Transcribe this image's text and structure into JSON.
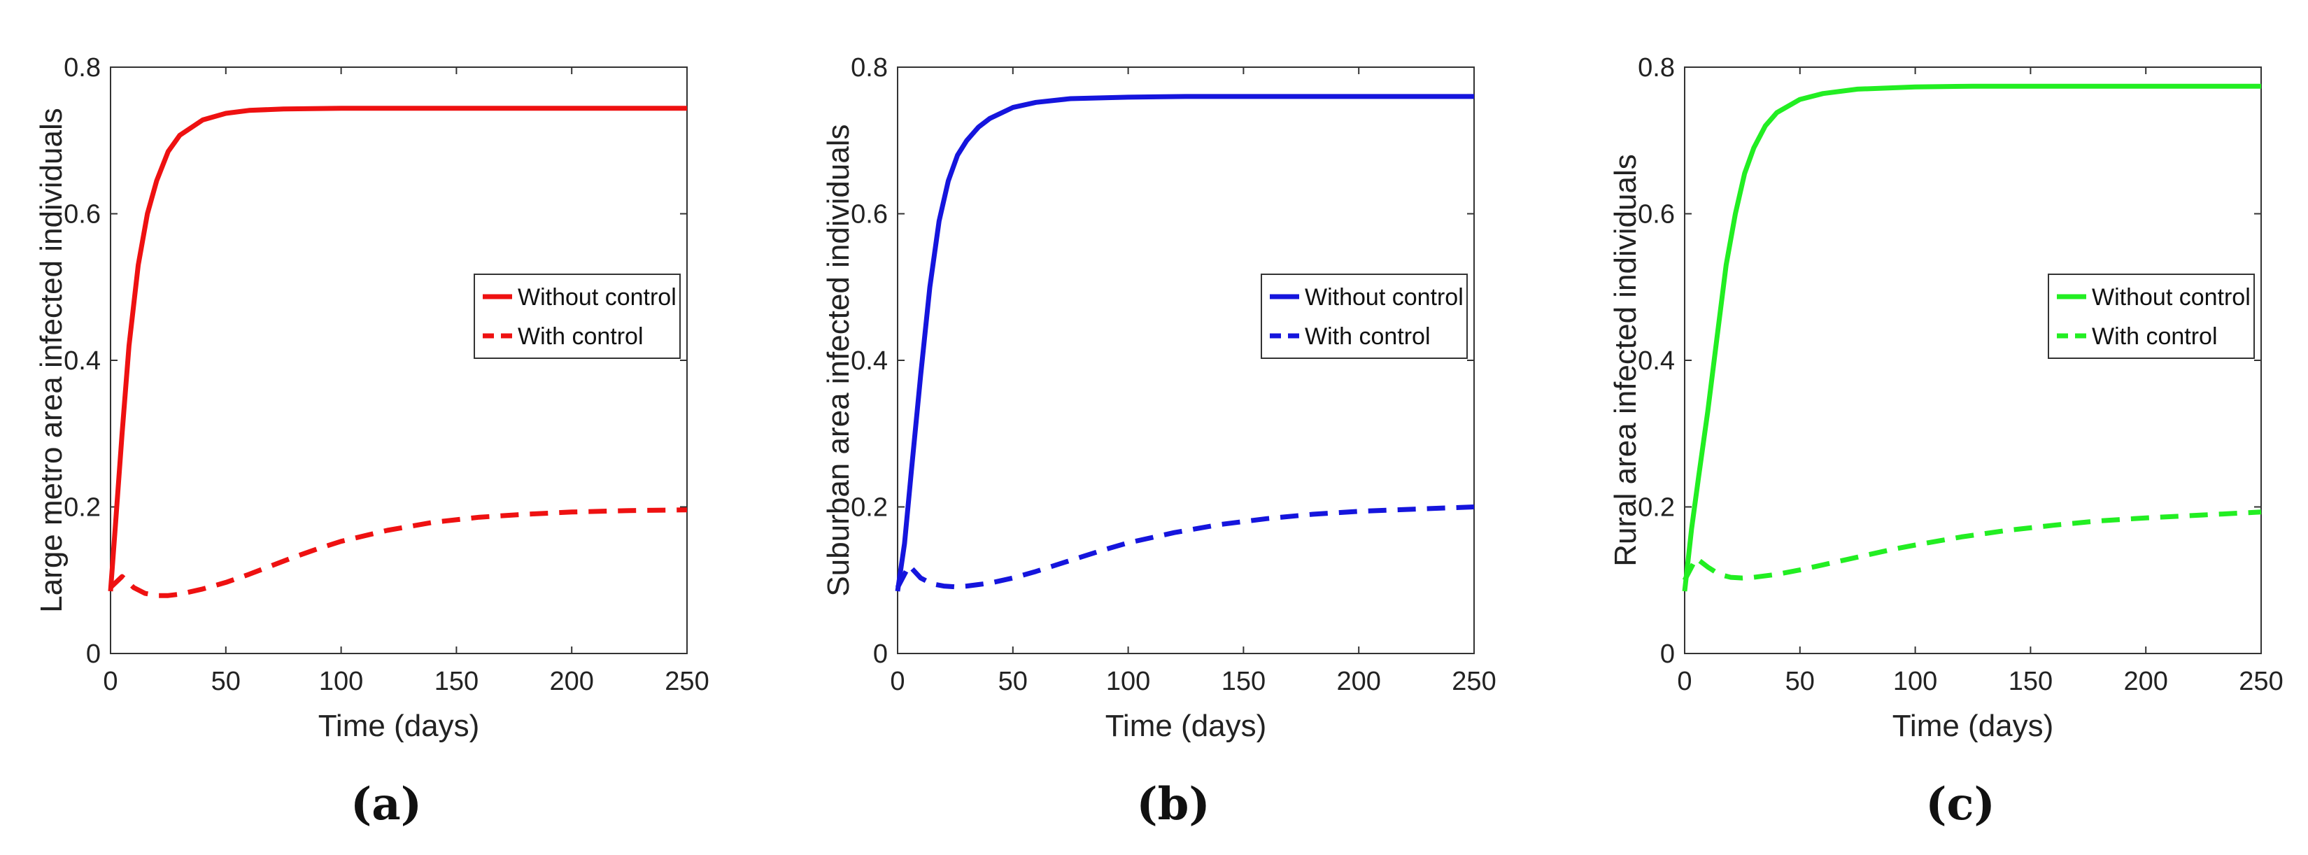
{
  "chart_data": [
    {
      "type": "line",
      "panel_label": "(a)",
      "title": "",
      "xlabel": "Time (days)",
      "ylabel": "Large metro area infected individuals",
      "xlim": [
        0,
        250
      ],
      "ylim": [
        0,
        0.8
      ],
      "xticks": [
        0,
        50,
        100,
        150,
        200,
        250
      ],
      "yticks": [
        0,
        0.2,
        0.4,
        0.6,
        0.8
      ],
      "xtick_labels": [
        "0",
        "50",
        "100",
        "150",
        "200",
        "250"
      ],
      "ytick_labels": [
        "0",
        "0.2",
        "0.4",
        "0.6",
        "0.8"
      ],
      "legend_position": "right-middle",
      "color": "#ee1111",
      "series": [
        {
          "name": "Without control",
          "style": "solid",
          "x": [
            0,
            2,
            5,
            8,
            12,
            16,
            20,
            25,
            30,
            40,
            50,
            60,
            75,
            100,
            125,
            150,
            200,
            250
          ],
          "y": [
            0.085,
            0.17,
            0.3,
            0.42,
            0.53,
            0.6,
            0.645,
            0.685,
            0.707,
            0.728,
            0.737,
            0.741,
            0.743,
            0.744,
            0.744,
            0.744,
            0.744,
            0.744
          ]
        },
        {
          "name": "With control",
          "style": "dashed",
          "x": [
            0,
            5,
            10,
            15,
            20,
            25,
            30,
            40,
            50,
            60,
            70,
            80,
            90,
            100,
            120,
            140,
            160,
            180,
            200,
            225,
            250
          ],
          "y": [
            0.09,
            0.105,
            0.09,
            0.082,
            0.079,
            0.079,
            0.081,
            0.088,
            0.097,
            0.108,
            0.12,
            0.132,
            0.143,
            0.153,
            0.168,
            0.179,
            0.186,
            0.19,
            0.193,
            0.195,
            0.196
          ]
        }
      ]
    },
    {
      "type": "line",
      "panel_label": "(b)",
      "title": "",
      "xlabel": "Time (days)",
      "ylabel": "Suburban area infected individuals",
      "xlim": [
        0,
        250
      ],
      "ylim": [
        0,
        0.8
      ],
      "xticks": [
        0,
        50,
        100,
        150,
        200,
        250
      ],
      "yticks": [
        0,
        0.2,
        0.4,
        0.6,
        0.8
      ],
      "xtick_labels": [
        "0",
        "50",
        "100",
        "150",
        "200",
        "250"
      ],
      "ytick_labels": [
        "0",
        "0.2",
        "0.4",
        "0.6",
        "0.8"
      ],
      "legend_position": "right-middle",
      "color": "#1515dd",
      "series": [
        {
          "name": "Without control",
          "style": "solid",
          "x": [
            0,
            3,
            6,
            10,
            14,
            18,
            22,
            26,
            30,
            35,
            40,
            50,
            60,
            75,
            100,
            125,
            150,
            200,
            250
          ],
          "y": [
            0.085,
            0.15,
            0.25,
            0.38,
            0.5,
            0.59,
            0.645,
            0.68,
            0.7,
            0.718,
            0.73,
            0.745,
            0.752,
            0.757,
            0.759,
            0.76,
            0.76,
            0.76,
            0.76
          ]
        },
        {
          "name": "With control",
          "style": "dashed",
          "x": [
            0,
            5,
            10,
            15,
            20,
            25,
            30,
            40,
            50,
            60,
            70,
            80,
            90,
            100,
            120,
            140,
            160,
            180,
            200,
            225,
            250
          ],
          "y": [
            0.09,
            0.12,
            0.103,
            0.095,
            0.092,
            0.091,
            0.092,
            0.096,
            0.103,
            0.112,
            0.122,
            0.132,
            0.142,
            0.151,
            0.165,
            0.176,
            0.184,
            0.19,
            0.194,
            0.197,
            0.2
          ]
        }
      ]
    },
    {
      "type": "line",
      "panel_label": "(c)",
      "title": "",
      "xlabel": "Time (days)",
      "ylabel": "Rural area infected individuals",
      "xlim": [
        0,
        250
      ],
      "ylim": [
        0,
        0.8
      ],
      "xticks": [
        0,
        50,
        100,
        150,
        200,
        250
      ],
      "yticks": [
        0,
        0.2,
        0.4,
        0.6,
        0.8
      ],
      "xtick_labels": [
        "0",
        "50",
        "100",
        "150",
        "200",
        "250"
      ],
      "ytick_labels": [
        "0",
        "0.2",
        "0.4",
        "0.6",
        "0.8"
      ],
      "legend_position": "right-middle",
      "color": "#22ee22",
      "series": [
        {
          "name": "Without control",
          "style": "solid",
          "x": [
            0,
            3,
            6,
            10,
            14,
            18,
            22,
            26,
            30,
            35,
            40,
            50,
            60,
            75,
            100,
            125,
            150,
            200,
            250
          ],
          "y": [
            0.085,
            0.17,
            0.24,
            0.33,
            0.43,
            0.53,
            0.6,
            0.655,
            0.69,
            0.72,
            0.738,
            0.756,
            0.764,
            0.77,
            0.773,
            0.774,
            0.774,
            0.774,
            0.774
          ]
        },
        {
          "name": "With control",
          "style": "dashed",
          "x": [
            0,
            5,
            10,
            15,
            20,
            25,
            30,
            40,
            50,
            60,
            70,
            80,
            90,
            100,
            120,
            140,
            160,
            180,
            200,
            225,
            250
          ],
          "y": [
            0.1,
            0.13,
            0.118,
            0.108,
            0.104,
            0.103,
            0.104,
            0.108,
            0.114,
            0.121,
            0.128,
            0.135,
            0.142,
            0.148,
            0.159,
            0.168,
            0.175,
            0.181,
            0.185,
            0.189,
            0.193
          ]
        }
      ]
    }
  ]
}
